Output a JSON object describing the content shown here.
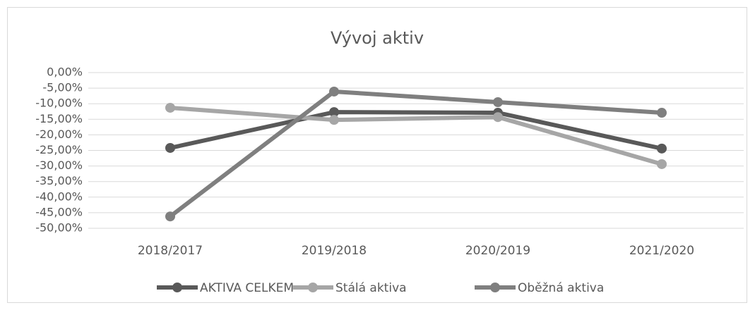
{
  "chart_data": {
    "type": "line",
    "title": "Vývoj aktiv",
    "categories": [
      "2018/2017",
      "2019/2018",
      "2020/2019",
      "2021/2020"
    ],
    "series": [
      {
        "name": "AKTIVA CELKEM",
        "color": "#595959",
        "values": [
          -24.2,
          -12.7,
          -12.9,
          -24.4
        ]
      },
      {
        "name": "Stálá aktiva",
        "color": "#a6a6a6",
        "values": [
          -11.3,
          -15.2,
          -14.3,
          -29.4
        ]
      },
      {
        "name": "Oběžná aktiva",
        "color": "#7f7f7f",
        "values": [
          -46.2,
          -6.1,
          -9.5,
          -12.9
        ]
      }
    ],
    "ylim": [
      -50,
      0
    ],
    "yticks": [
      {
        "value": 0,
        "label": "0,00%"
      },
      {
        "value": -5,
        "label": "-5,00%"
      },
      {
        "value": -10,
        "label": "-10,00%"
      },
      {
        "value": -15,
        "label": "-15,00%"
      },
      {
        "value": -20,
        "label": "-20,00%"
      },
      {
        "value": -25,
        "label": "-25,00%"
      },
      {
        "value": -30,
        "label": "-30,00%"
      },
      {
        "value": -35,
        "label": "-35,00%"
      },
      {
        "value": -40,
        "label": "-40,00%"
      },
      {
        "value": -45,
        "label": "-45,00%"
      },
      {
        "value": -50,
        "label": "-50,00%"
      }
    ],
    "grid": true,
    "legend": "bottom"
  }
}
